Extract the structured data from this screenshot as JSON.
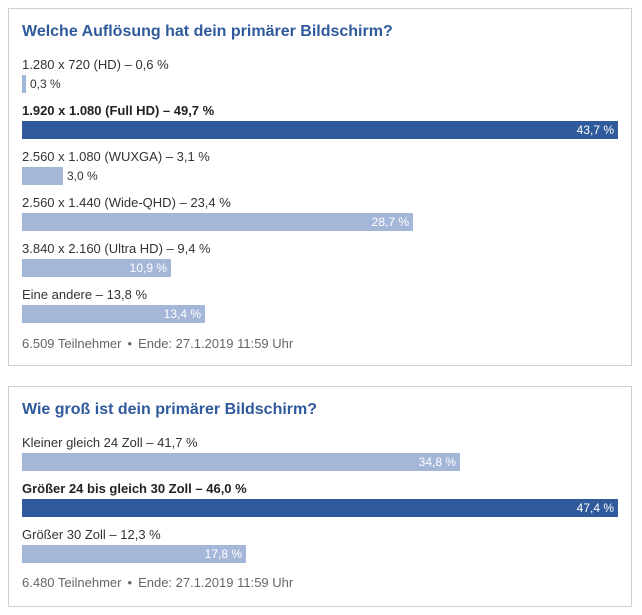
{
  "polls": [
    {
      "title": "Welche Auflösung hat dein primärer Bildschirm?",
      "options": [
        {
          "label": "1.280 x 720 (HD) – 0,6 %",
          "bar_value": 0.3,
          "bar_text": "0,3 %",
          "winner": false
        },
        {
          "label": "1.920 x 1.080 (Full HD) – 49,7 %",
          "bar_value": 43.7,
          "bar_text": "43,7 %",
          "winner": true
        },
        {
          "label": "2.560 x 1.080 (WUXGA) – 3,1 %",
          "bar_value": 3.0,
          "bar_text": "3,0 %",
          "winner": false
        },
        {
          "label": "2.560 x 1.440 (Wide-QHD) – 23,4 %",
          "bar_value": 28.7,
          "bar_text": "28,7 %",
          "winner": false
        },
        {
          "label": "3.840 x 2.160 (Ultra HD) – 9,4 %",
          "bar_value": 10.9,
          "bar_text": "10,9 %",
          "winner": false
        },
        {
          "label": "Eine andere – 13,8 %",
          "bar_value": 13.4,
          "bar_text": "13,4 %",
          "winner": false
        }
      ],
      "participants": "6.509 Teilnehmer",
      "separator": "•",
      "end": "Ende: 27.1.2019 11:59 Uhr"
    },
    {
      "title": "Wie groß ist dein primärer Bildschirm?",
      "options": [
        {
          "label": "Kleiner gleich 24 Zoll – 41,7 %",
          "bar_value": 34.8,
          "bar_text": "34,8 %",
          "winner": false
        },
        {
          "label": "Größer 24 bis gleich 30 Zoll – 46,0 %",
          "bar_value": 47.4,
          "bar_text": "47,4 %",
          "winner": true
        },
        {
          "label": "Größer 30 Zoll – 12,3 %",
          "bar_value": 17.8,
          "bar_text": "17,8 %",
          "winner": false
        }
      ],
      "participants": "6.480 Teilnehmer",
      "separator": "•",
      "end": "Ende: 27.1.2019 11:59 Uhr"
    }
  ]
}
